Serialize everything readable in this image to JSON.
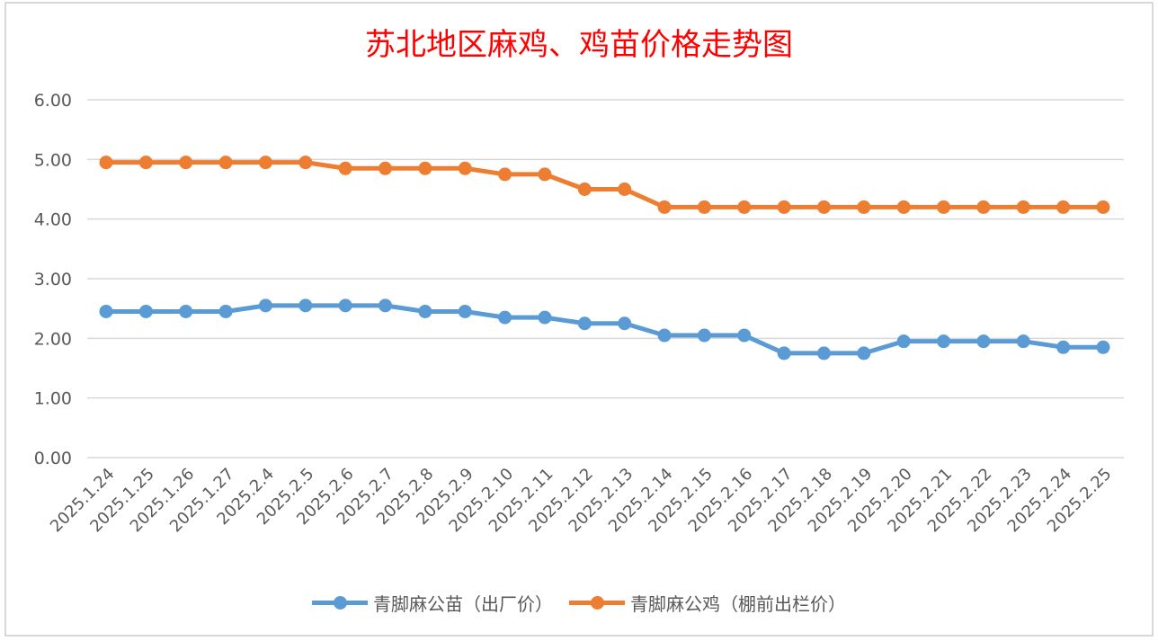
{
  "chart_data": {
    "type": "line",
    "title": "苏北地区麻鸡、鸡苗价格走势图",
    "xlabel": "",
    "ylabel": "",
    "ylim": [
      0,
      6
    ],
    "yticks": [
      "0.00",
      "1.00",
      "2.00",
      "3.00",
      "4.00",
      "5.00",
      "6.00"
    ],
    "grid": true,
    "legend_position": "bottom",
    "categories": [
      "2025.1.24",
      "2025.1.25",
      "2025.1.26",
      "2025.1.27",
      "2025.2.4",
      "2025.2.5",
      "2025.2.6",
      "2025.2.7",
      "2025.2.8",
      "2025.2.9",
      "2025.2.10",
      "2025.2.11",
      "2025.2.12",
      "2025.2.13",
      "2025.2.14",
      "2025.2.15",
      "2025.2.16",
      "2025.2.17",
      "2025.2.18",
      "2025.2.19",
      "2025.2.20",
      "2025.2.21",
      "2025.2.22",
      "2025.2.23",
      "2025.2.24",
      "2025.2.25"
    ],
    "series": [
      {
        "name": "青脚麻公苗（出厂价）",
        "color": "#5b9bd5",
        "values": [
          2.45,
          2.45,
          2.45,
          2.45,
          2.55,
          2.55,
          2.55,
          2.55,
          2.45,
          2.45,
          2.35,
          2.35,
          2.25,
          2.25,
          2.05,
          2.05,
          2.05,
          1.75,
          1.75,
          1.75,
          1.95,
          1.95,
          1.95,
          1.95,
          1.85,
          1.85
        ]
      },
      {
        "name": "青脚麻公鸡（棚前出栏价）",
        "color": "#ed7d31",
        "values": [
          4.95,
          4.95,
          4.95,
          4.95,
          4.95,
          4.95,
          4.85,
          4.85,
          4.85,
          4.85,
          4.75,
          4.75,
          4.5,
          4.5,
          4.2,
          4.2,
          4.2,
          4.2,
          4.2,
          4.2,
          4.2,
          4.2,
          4.2,
          4.2,
          4.2,
          4.2
        ]
      }
    ]
  }
}
